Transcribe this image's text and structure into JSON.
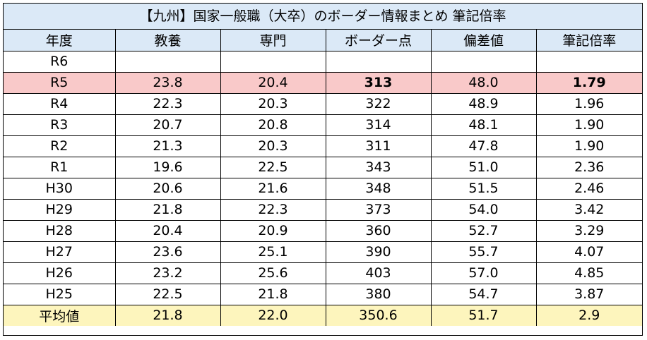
{
  "title": "【九州】国家一般職（大卒）のボーダー情報まとめ 筆記倍率",
  "headers": [
    "年度",
    "教養",
    "専門",
    "ボーダー点",
    "偏差値",
    "筆記倍率"
  ],
  "rows": [
    [
      "R6",
      "",
      "",
      "",
      "",
      ""
    ],
    [
      "R5",
      "23.8",
      "20.4",
      "313",
      "48.0",
      "1.79"
    ],
    [
      "R4",
      "22.3",
      "20.3",
      "322",
      "48.9",
      "1.96"
    ],
    [
      "R3",
      "20.7",
      "20.8",
      "314",
      "48.1",
      "1.90"
    ],
    [
      "R2",
      "21.3",
      "20.3",
      "311",
      "47.8",
      "1.90"
    ],
    [
      "R1",
      "19.6",
      "22.5",
      "343",
      "51.0",
      "2.36"
    ],
    [
      "H30",
      "20.6",
      "21.6",
      "348",
      "51.5",
      "2.46"
    ],
    [
      "H29",
      "21.8",
      "22.3",
      "373",
      "54.0",
      "3.42"
    ],
    [
      "H28",
      "20.4",
      "20.9",
      "360",
      "52.7",
      "3.29"
    ],
    [
      "H27",
      "23.6",
      "25.1",
      "390",
      "55.7",
      "4.07"
    ],
    [
      "H26",
      "23.2",
      "25.6",
      "403",
      "57.0",
      "4.85"
    ],
    [
      "H25",
      "22.5",
      "21.8",
      "380",
      "54.7",
      "3.87"
    ]
  ],
  "average": [
    "平均値",
    "21.8",
    "22.0",
    "350.6",
    "51.7",
    "2.9"
  ],
  "colors": {
    "header_bg": "#dbe9f7",
    "highlight_row_bg": "#f9c9c9",
    "average_row_bg": "#fdf5bd"
  }
}
